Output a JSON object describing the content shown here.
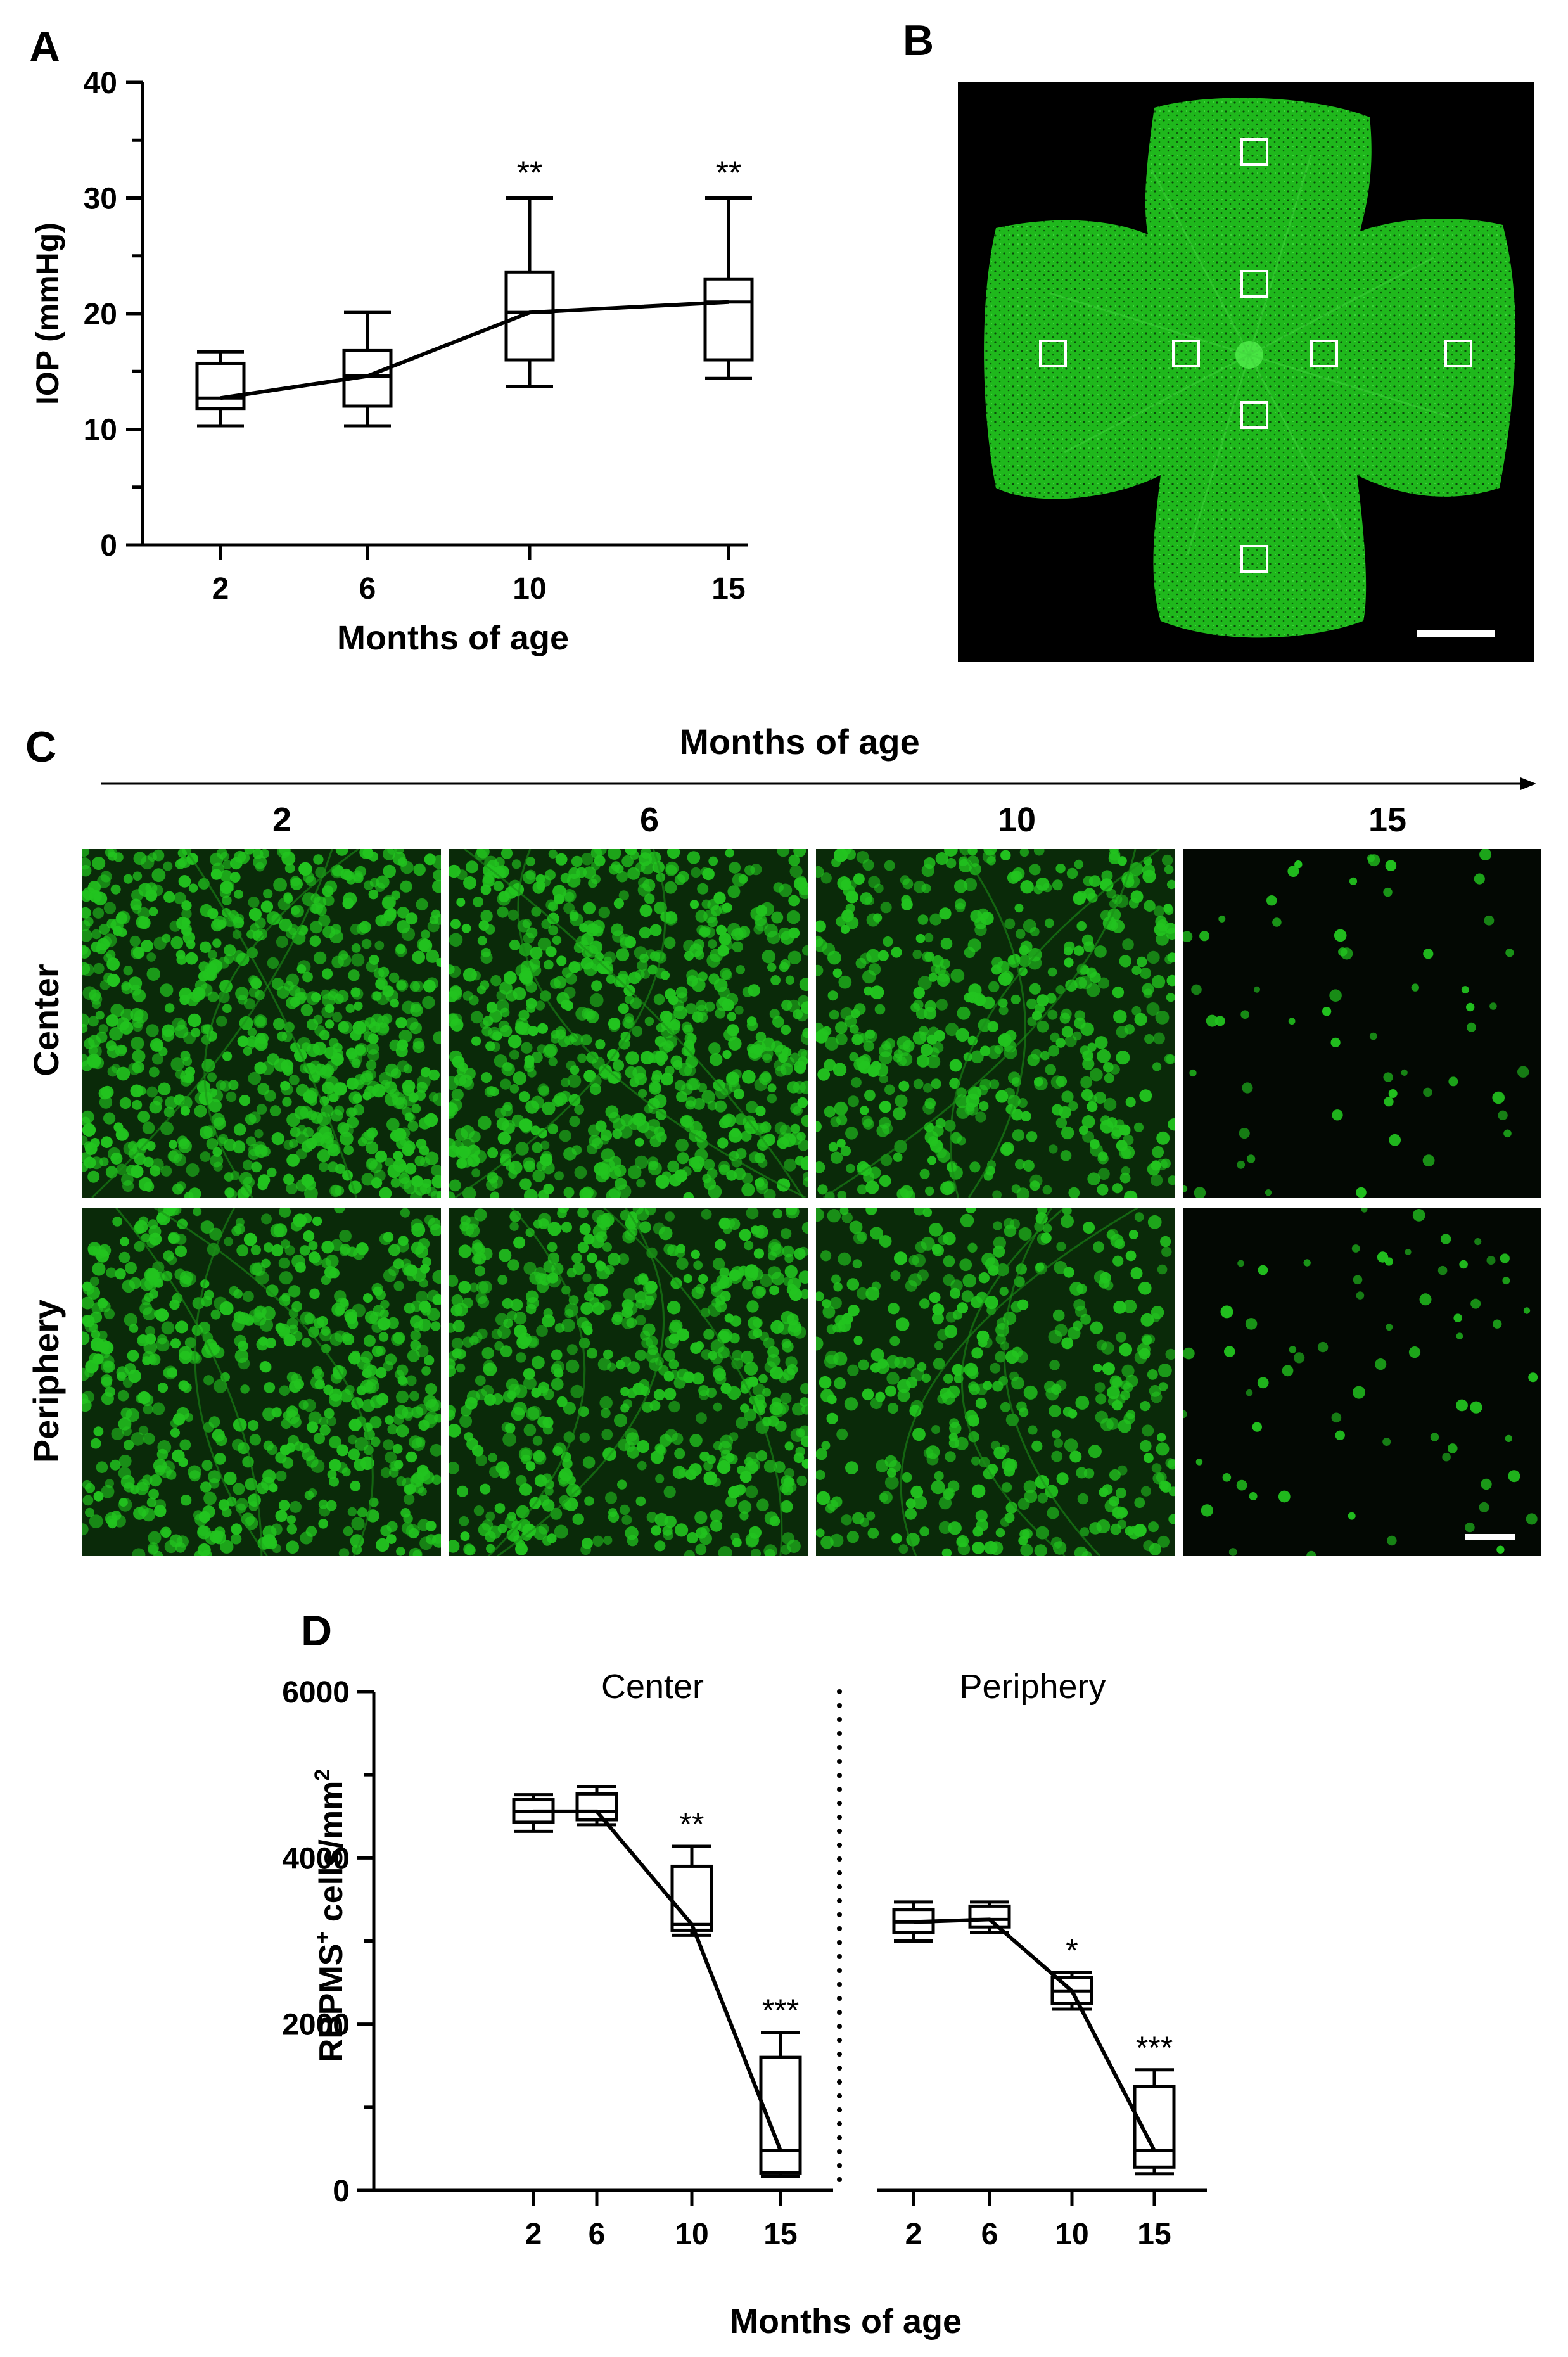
{
  "figure": {
    "panel_letters": {
      "a": "A",
      "b": "B",
      "c": "C",
      "d": "D"
    }
  },
  "panel_c": {
    "title": "Months of age",
    "columns": [
      "2",
      "6",
      "10",
      "15"
    ],
    "rows": [
      "Center",
      "Periphery"
    ],
    "image_color": "#22c41f",
    "density": [
      [
        0.95,
        0.92,
        0.62,
        0.07
      ],
      [
        0.78,
        0.74,
        0.5,
        0.08
      ]
    ]
  },
  "panel_b": {
    "image_color": "#1fb81c",
    "sample_boxes": 8
  },
  "chart_data": [
    {
      "panel": "A",
      "type": "box",
      "xlabel": "Months of age",
      "ylabel": "IOP (mmHg)",
      "ylim": [
        0,
        40
      ],
      "yticks": [
        0,
        10,
        20,
        30,
        40
      ],
      "categories": [
        "2",
        "6",
        "10",
        "15"
      ],
      "boxes": [
        {
          "min": 10.3,
          "q1": 11.8,
          "median": 12.7,
          "q3": 15.7,
          "max": 16.7,
          "sig": ""
        },
        {
          "min": 10.3,
          "q1": 12.0,
          "median": 14.6,
          "q3": 16.8,
          "max": 20.1,
          "sig": ""
        },
        {
          "min": 13.7,
          "q1": 16.0,
          "median": 20.1,
          "q3": 23.6,
          "max": 30.0,
          "sig": "**"
        },
        {
          "min": 14.4,
          "q1": 16.0,
          "median": 21.0,
          "q3": 23.0,
          "max": 30.0,
          "sig": "**"
        }
      ]
    },
    {
      "panel": "D",
      "type": "box",
      "xlabel": "Months of age",
      "ylabel": "RBPMS",
      "ylabel_sup": "+",
      "ylabel_rest": " cells/mm",
      "ylabel_unit_sup": "2",
      "ylim": [
        0,
        6000
      ],
      "yticks": [
        0,
        2000,
        4000,
        6000
      ],
      "groups": [
        {
          "name": "Center",
          "categories": [
            "2",
            "6",
            "10",
            "15"
          ],
          "boxes": [
            {
              "min": 4320,
              "q1": 4430,
              "median": 4560,
              "q3": 4700,
              "max": 4760,
              "sig": ""
            },
            {
              "min": 4400,
              "q1": 4460,
              "median": 4560,
              "q3": 4770,
              "max": 4860,
              "sig": ""
            },
            {
              "min": 3070,
              "q1": 3130,
              "median": 3200,
              "q3": 3900,
              "max": 4140,
              "sig": "**"
            },
            {
              "min": 170,
              "q1": 210,
              "median": 480,
              "q3": 1600,
              "max": 1900,
              "sig": "***"
            }
          ]
        },
        {
          "name": "Periphery",
          "categories": [
            "2",
            "6",
            "10",
            "15"
          ],
          "boxes": [
            {
              "min": 3000,
              "q1": 3100,
              "median": 3230,
              "q3": 3380,
              "max": 3470,
              "sig": ""
            },
            {
              "min": 3100,
              "q1": 3170,
              "median": 3260,
              "q3": 3420,
              "max": 3470,
              "sig": ""
            },
            {
              "min": 2180,
              "q1": 2250,
              "median": 2400,
              "q3": 2560,
              "max": 2620,
              "sig": "*"
            },
            {
              "min": 200,
              "q1": 280,
              "median": 480,
              "q3": 1250,
              "max": 1450,
              "sig": "***"
            }
          ]
        }
      ]
    }
  ]
}
